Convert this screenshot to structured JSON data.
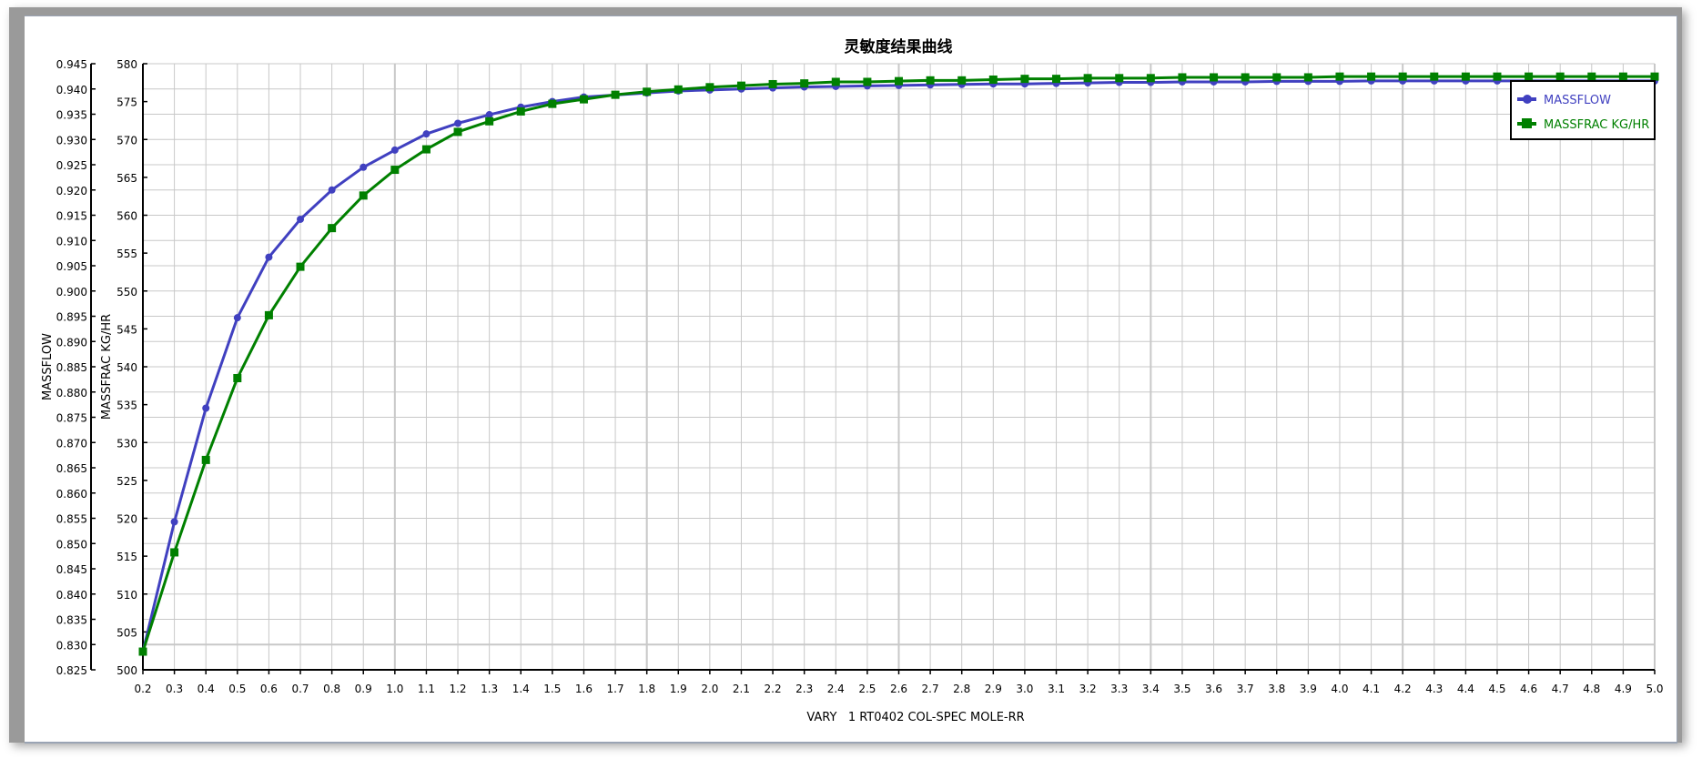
{
  "chart_data": {
    "type": "line",
    "title": "灵敏度结果曲线",
    "xlabel": "VARY   1 RT0402 COL-SPEC MOLE-RR",
    "ylabel_left": "MASSFLOW",
    "ylabel_right": "MASSFRAC KG/HR",
    "xlim": [
      0.2,
      5.0
    ],
    "ylim_left": [
      0.825,
      0.945
    ],
    "ylim_right": [
      500,
      580
    ],
    "grid": true,
    "legend_placement": "top-right",
    "x": [
      0.2,
      0.3,
      0.4,
      0.5,
      0.6,
      0.7,
      0.8,
      0.9,
      1.0,
      1.1,
      1.2,
      1.3,
      1.4,
      1.5,
      1.6,
      1.7,
      1.8,
      1.9,
      2.0,
      2.1,
      2.2,
      2.3,
      2.4,
      2.5,
      2.6,
      2.7,
      2.8,
      2.9,
      3.0,
      3.1,
      3.2,
      3.3,
      3.4,
      3.5,
      3.6,
      3.7,
      3.8,
      3.9,
      4.0,
      4.1,
      4.2,
      4.3,
      4.4,
      4.5,
      4.6,
      4.7,
      4.8,
      4.9,
      5.0
    ],
    "series": [
      {
        "name": "MASSFLOW",
        "axis": "left",
        "color": "#4040c0",
        "marker": "circle",
        "values": [
          0.8286,
          0.8543,
          0.8768,
          0.8947,
          0.9067,
          0.9142,
          0.92,
          0.9245,
          0.9279,
          0.9311,
          0.9332,
          0.9349,
          0.9364,
          0.9375,
          0.9384,
          0.9388,
          0.9392,
          0.9396,
          0.9398,
          0.94,
          0.9402,
          0.9404,
          0.9405,
          0.9406,
          0.9407,
          0.9408,
          0.9409,
          0.941,
          0.941,
          0.9411,
          0.9412,
          0.9413,
          0.9413,
          0.9414,
          0.9414,
          0.9414,
          0.9415,
          0.9415,
          0.9415,
          0.9416,
          0.9416,
          0.9416,
          0.9416,
          0.9416,
          0.9416,
          0.9416,
          0.9416,
          0.9416,
          0.9416
        ]
      },
      {
        "name": "MASSFRAC KG/HR",
        "axis": "right",
        "color": "#008000",
        "marker": "square",
        "values": [
          502.4,
          515.5,
          527.7,
          538.5,
          546.8,
          553.2,
          558.3,
          562.6,
          566.0,
          568.7,
          571.0,
          572.4,
          573.7,
          574.7,
          575.3,
          575.9,
          576.3,
          576.6,
          576.9,
          577.1,
          577.3,
          577.4,
          577.6,
          577.6,
          577.7,
          577.8,
          577.8,
          577.9,
          578.0,
          578.0,
          578.1,
          578.1,
          578.1,
          578.2,
          578.2,
          578.2,
          578.2,
          578.2,
          578.3,
          578.3,
          578.3,
          578.3,
          578.3,
          578.3,
          578.3,
          578.3,
          578.3,
          578.3,
          578.3
        ]
      }
    ]
  }
}
